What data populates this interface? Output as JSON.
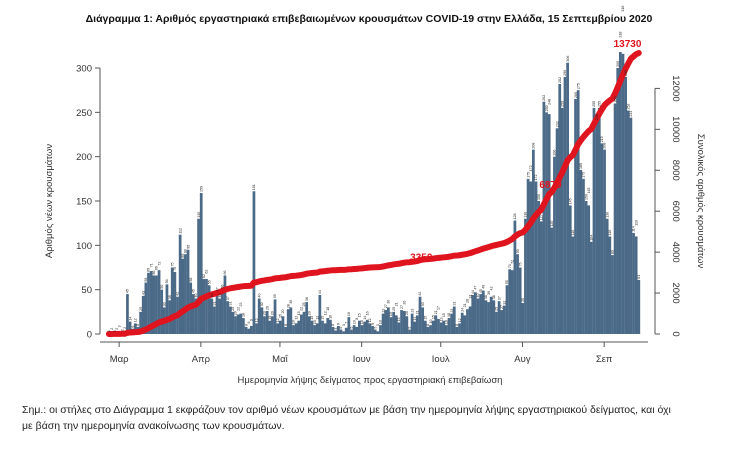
{
  "chart_data": {
    "type": "bar+line",
    "title": "Διάγραμμα 1: Αριθμός εργαστηριακά επιβεβαιωμένων κρουσμάτων COVID-19 στην Ελλάδα, 15 Σεπτεμβρίου 2020",
    "xlabel": "Ημερομηνία λήψης δείγματος προς εργαστηριακή επιβεβαίωση",
    "ylabel": "Αριθμός νέων κρουσμάτων",
    "y2label": "Συνολικός αριθμός κρουσμάτων",
    "x_start": "2020-02-26",
    "x_ticks": [
      {
        "label": "Μαρ",
        "day": 4
      },
      {
        "label": "Απρ",
        "day": 35
      },
      {
        "label": "Μαΐ",
        "day": 65
      },
      {
        "label": "Ιουν",
        "day": 96
      },
      {
        "label": "Ιουλ",
        "day": 126
      },
      {
        "label": "Αυγ",
        "day": 157
      },
      {
        "label": "Σεπ",
        "day": 188
      }
    ],
    "ylim": [
      0,
      300
    ],
    "yticks": [
      0,
      50,
      100,
      150,
      200,
      250,
      300
    ],
    "y2lim": [
      0,
      13730
    ],
    "y2ticks": [
      0,
      2000,
      4000,
      6000,
      8000,
      10000,
      12000
    ],
    "series": [
      {
        "name": "Νέα κρούσματα",
        "type": "bar",
        "color": "#4b6a88",
        "values": [
          1,
          2,
          1,
          2,
          3,
          2,
          2,
          45,
          14,
          6,
          12,
          8,
          25,
          43,
          58,
          69,
          71,
          66,
          66,
          72,
          50,
          30,
          56,
          38,
          75,
          70,
          42,
          112,
          85,
          90,
          95,
          58,
          45,
          40,
          130,
          159,
          62,
          62,
          55,
          40,
          31,
          47,
          40,
          50,
          66,
          37,
          31,
          25,
          20,
          22,
          23,
          18,
          8,
          6,
          9,
          161,
          12,
          40,
          30,
          20,
          26,
          15,
          20,
          39,
          12,
          15,
          20,
          8,
          28,
          30,
          10,
          12,
          15,
          22,
          25,
          36,
          20,
          15,
          10,
          12,
          44,
          15,
          12,
          18,
          16,
          8,
          4,
          9,
          5,
          3,
          7,
          19,
          5,
          10,
          8,
          15,
          10,
          14,
          16,
          12,
          9,
          5,
          3,
          10,
          23,
          27,
          30,
          19,
          25,
          21,
          13,
          27,
          26,
          20,
          5,
          23,
          14,
          21,
          42,
          30,
          15,
          8,
          10,
          15,
          21,
          17,
          13,
          15,
          10,
          18,
          23,
          31,
          8,
          12,
          24,
          21,
          28,
          31,
          44,
          47,
          40,
          45,
          49,
          38,
          36,
          42,
          38,
          25,
          37,
          27,
          32,
          55,
          73,
          72,
          128,
          90,
          75,
          35,
          130,
          175,
          172,
          208,
          172,
          150,
          127,
          262,
          250,
          248,
          120,
          200,
          232,
          282,
          255,
          290,
          306,
          145,
          110,
          265,
          275,
          185,
          175,
          150,
          145,
          104,
          255,
          240,
          255,
          215,
          208,
          130,
          110,
          89,
          260,
          300,
          318,
          316,
          290,
          252,
          244,
          114,
          110,
          61
        ]
      },
      {
        "name": "Συνολικά κρούσματα",
        "type": "line",
        "color": "#e0141e",
        "final_total": 13730
      }
    ],
    "annotations": [
      {
        "text": "3350",
        "day": 119,
        "value": 3350
      },
      {
        "text": "6879",
        "day": 168,
        "value": 6879
      },
      {
        "text": "13730",
        "day": 201,
        "value": 13730
      }
    ],
    "grid": false,
    "legend": "none"
  },
  "note": {
    "line1": "Σημ.: οι στήλες στο Διάγραμμα 1 εκφράζουν τον αριθμό νέων κρουσμάτων με βάση την ημερομηνία λήψης εργαστηριακού δείγματος, και όχι",
    "line2": "με βάση την ημερομηνία ανακοίνωσης των κρουσμάτων."
  }
}
